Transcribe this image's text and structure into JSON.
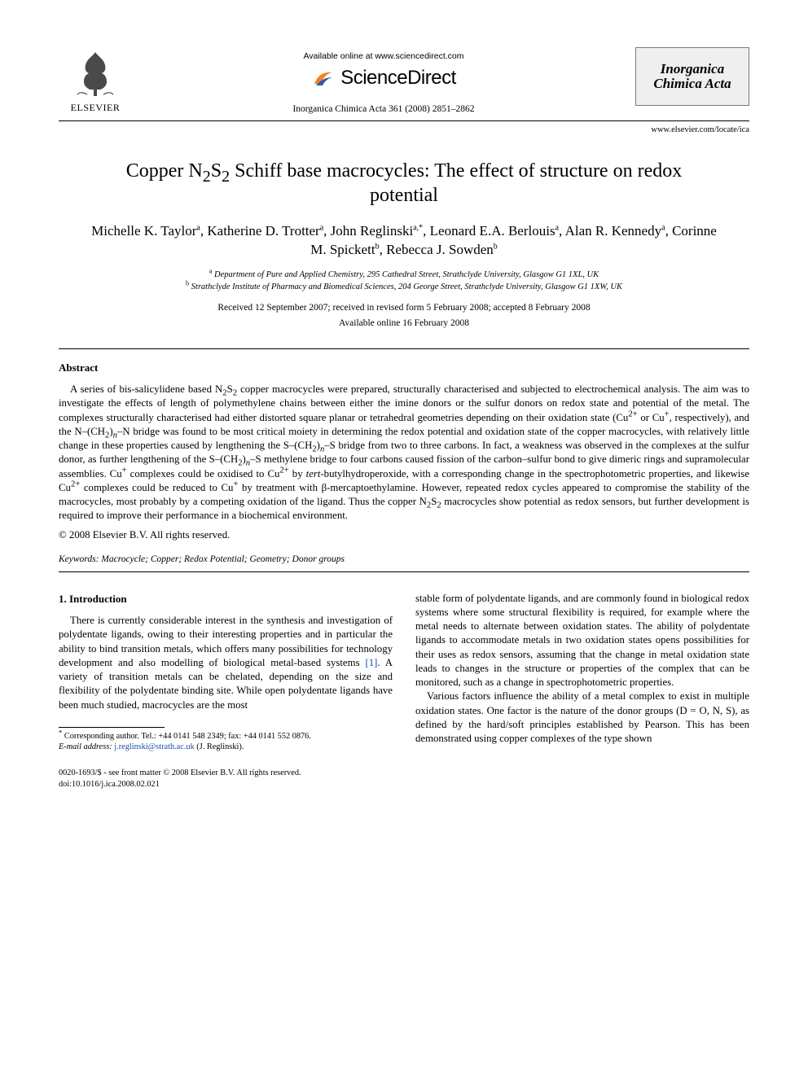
{
  "header": {
    "available_online": "Available online at www.sciencedirect.com",
    "sd_brand": "ScienceDirect",
    "elsevier_word": "ELSEVIER",
    "journal_ref": "Inorganica Chimica Acta 361 (2008) 2851–2862",
    "journal_box_line1": "Inorganica",
    "journal_box_line2": "Chimica Acta",
    "locate_url": "www.elsevier.com/locate/ica"
  },
  "title_parts": {
    "pre": "Copper N",
    "sub1": "2",
    "mid1": "S",
    "sub2": "2",
    "post": " Schiff base macrocycles: The effect of structure on redox potential"
  },
  "authors": {
    "a1": "Michelle K. Taylor",
    "s1": "a",
    "a2": "Katherine D. Trotter",
    "s2": "a",
    "a3": "John Reglinski",
    "s3": "a,",
    "s3b": "*",
    "a4": "Leonard E.A. Berlouis",
    "s4": "a",
    "a5": "Alan R. Kennedy",
    "s5": "a",
    "a6": "Corinne M. Spickett",
    "s6": "b",
    "a7": "Rebecca J. Sowden",
    "s7": "b"
  },
  "affiliations": {
    "a": "Department of Pure and Applied Chemistry, 295 Cathedral Street, Strathclyde University, Glasgow G1 1XL, UK",
    "b": "Strathclyde Institute of Pharmacy and Biomedical Sciences, 204 George Street, Strathclyde University, Glasgow G1 1XW, UK"
  },
  "dates": {
    "received": "Received 12 September 2007; received in revised form 5 February 2008; accepted 8 February 2008",
    "available": "Available online 16 February 2008"
  },
  "abstract": {
    "heading": "Abstract",
    "body_html": "A series of bis-salicylidene based N<sub>2</sub>S<sub>2</sub> copper macrocycles were prepared, structurally characterised and subjected to electrochemical analysis. The aim was to investigate the effects of length of polymethylene chains between either the imine donors or the sulfur donors on redox state and potential of the metal. The complexes structurally characterised had either distorted square planar or tetrahedral geometries depending on their oxidation state (Cu<sup>2+</sup> or Cu<sup>+</sup>, respectively), and the N–(CH<sub>2</sub>)<sub><i>n</i></sub>–N bridge was found to be most critical moiety in determining the redox potential and oxidation state of the copper macrocycles, with relatively little change in these properties caused by lengthening the S–(CH<sub>2</sub>)<sub><i>n</i></sub>–S bridge from two to three carbons. In fact, a weakness was observed in the complexes at the sulfur donor, as further lengthening of the S–(CH<sub>2</sub>)<sub><i>n</i></sub>–S methylene bridge to four carbons caused fission of the carbon–sulfur bond to give dimeric rings and supramolecular assemblies. Cu<sup>+</sup> complexes could be oxidised to Cu<sup>2+</sup> by <i>tert</i>-butylhydroperoxide, with a corresponding change in the spectrophotometric properties, and likewise Cu<sup>2+</sup> complexes could be reduced to Cu<sup>+</sup> by treatment with β-mercaptoethylamine. However, repeated redox cycles appeared to compromise the stability of the macrocycles, most probably by a competing oxidation of the ligand. Thus the copper N<sub>2</sub>S<sub>2</sub> macrocycles show potential as redox sensors, but further development is required to improve their performance in a biochemical environment.",
    "copyright": "© 2008 Elsevier B.V. All rights reserved."
  },
  "keywords": {
    "label": "Keywords:",
    "list": " Macrocycle; Copper; Redox Potential; Geometry; Donor groups"
  },
  "section1": {
    "heading": "1. Introduction",
    "col1_p1_html": "There is currently considerable interest in the synthesis and investigation of polydentate ligands, owing to their interesting properties and in particular the ability to bind transition metals, which offers many possibilities for technology development and also modelling of biological metal-based systems <span class=\"cite\">[1]</span>. A variety of transition metals can be chelated, depending on the size and flexibility of the polydentate binding site. While open polydentate ligands have been much studied, macrocycles are the most",
    "col2_p1": "stable form of polydentate ligands, and are commonly found in biological redox systems where some structural flexibility is required, for example where the metal needs to alternate between oxidation states. The ability of polydentate ligands to accommodate metals in two oxidation states opens possibilities for their uses as redox sensors, assuming that the change in metal oxidation state leads to changes in the structure or properties of the complex that can be monitored, such as a change in spectrophotometric properties.",
    "col2_p2": "Various factors influence the ability of a metal complex to exist in multiple oxidation states. One factor is the nature of the donor groups (D = O, N, S), as defined by the hard/soft principles established by Pearson. This has been demonstrated using copper complexes of the type shown"
  },
  "footnotes": {
    "corr": "Corresponding author. Tel.: +44 0141 548 2349; fax: +44 0141 552 0876.",
    "email_label": "E-mail address:",
    "email": "j.reglinski@strath.ac.uk",
    "email_suffix": "(J. Reglinski)."
  },
  "footer": {
    "line1": "0020-1693/$ - see front matter © 2008 Elsevier B.V. All rights reserved.",
    "line2": "doi:10.1016/j.ica.2008.02.021"
  },
  "colors": {
    "link": "#1a4fa3",
    "box_bg": "#efefef",
    "box_border": "#7a7a7a",
    "text": "#000000",
    "sd_orange": "#f58220"
  }
}
